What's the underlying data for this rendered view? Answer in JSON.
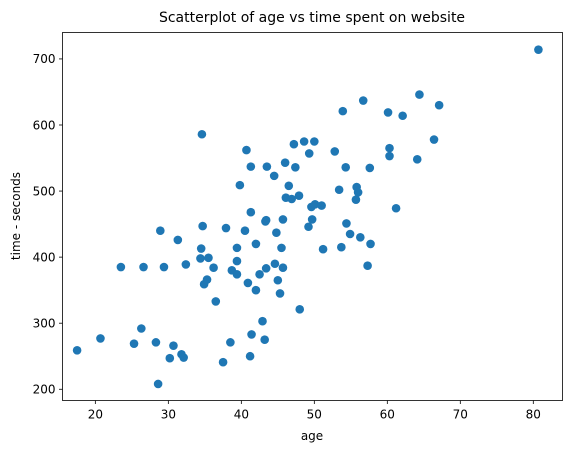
{
  "chart_data": {
    "type": "scatter",
    "title": "Scatterplot of age vs time spent on website",
    "xlabel": "age",
    "ylabel": "time - seconds",
    "xlim": [
      15.5,
      84
    ],
    "ylim": [
      183,
      740
    ],
    "xticks": [
      20,
      30,
      40,
      50,
      60,
      70,
      80
    ],
    "yticks": [
      200,
      300,
      400,
      500,
      600,
      700
    ],
    "grid": false,
    "marker_color": "#1f77b4",
    "points": [
      {
        "x": 17.5,
        "y": 259
      },
      {
        "x": 20.7,
        "y": 277
      },
      {
        "x": 23.5,
        "y": 385
      },
      {
        "x": 25.3,
        "y": 269
      },
      {
        "x": 26.3,
        "y": 292
      },
      {
        "x": 26.6,
        "y": 385
      },
      {
        "x": 28.3,
        "y": 271
      },
      {
        "x": 28.6,
        "y": 208
      },
      {
        "x": 28.9,
        "y": 440
      },
      {
        "x": 29.4,
        "y": 385
      },
      {
        "x": 30.2,
        "y": 247
      },
      {
        "x": 30.7,
        "y": 266
      },
      {
        "x": 31.3,
        "y": 426
      },
      {
        "x": 31.8,
        "y": 253
      },
      {
        "x": 32.1,
        "y": 248
      },
      {
        "x": 32.4,
        "y": 389
      },
      {
        "x": 34.4,
        "y": 398
      },
      {
        "x": 34.5,
        "y": 413
      },
      {
        "x": 34.6,
        "y": 586
      },
      {
        "x": 34.7,
        "y": 447
      },
      {
        "x": 34.9,
        "y": 359
      },
      {
        "x": 35.3,
        "y": 366
      },
      {
        "x": 35.5,
        "y": 399
      },
      {
        "x": 36.2,
        "y": 384
      },
      {
        "x": 36.5,
        "y": 333
      },
      {
        "x": 37.5,
        "y": 241
      },
      {
        "x": 37.9,
        "y": 444
      },
      {
        "x": 38.5,
        "y": 271
      },
      {
        "x": 38.7,
        "y": 380
      },
      {
        "x": 39.4,
        "y": 374
      },
      {
        "x": 39.4,
        "y": 394
      },
      {
        "x": 39.4,
        "y": 414
      },
      {
        "x": 39.8,
        "y": 509
      },
      {
        "x": 40.5,
        "y": 440
      },
      {
        "x": 40.7,
        "y": 562
      },
      {
        "x": 40.9,
        "y": 361
      },
      {
        "x": 41.2,
        "y": 250
      },
      {
        "x": 41.3,
        "y": 468
      },
      {
        "x": 41.3,
        "y": 537
      },
      {
        "x": 41.4,
        "y": 283
      },
      {
        "x": 42.0,
        "y": 350
      },
      {
        "x": 42.0,
        "y": 420
      },
      {
        "x": 42.5,
        "y": 374
      },
      {
        "x": 42.9,
        "y": 303
      },
      {
        "x": 43.2,
        "y": 275
      },
      {
        "x": 43.3,
        "y": 454
      },
      {
        "x": 43.4,
        "y": 383
      },
      {
        "x": 43.4,
        "y": 456
      },
      {
        "x": 43.5,
        "y": 537
      },
      {
        "x": 44.5,
        "y": 523
      },
      {
        "x": 44.6,
        "y": 390
      },
      {
        "x": 44.8,
        "y": 437
      },
      {
        "x": 45.0,
        "y": 365
      },
      {
        "x": 45.3,
        "y": 345
      },
      {
        "x": 45.5,
        "y": 414
      },
      {
        "x": 45.7,
        "y": 457
      },
      {
        "x": 45.7,
        "y": 384
      },
      {
        "x": 46.0,
        "y": 543
      },
      {
        "x": 46.1,
        "y": 490
      },
      {
        "x": 46.5,
        "y": 508
      },
      {
        "x": 46.9,
        "y": 488
      },
      {
        "x": 47.2,
        "y": 571
      },
      {
        "x": 47.4,
        "y": 536
      },
      {
        "x": 47.9,
        "y": 493
      },
      {
        "x": 48.0,
        "y": 321
      },
      {
        "x": 48.6,
        "y": 575
      },
      {
        "x": 49.2,
        "y": 446
      },
      {
        "x": 49.3,
        "y": 557
      },
      {
        "x": 49.6,
        "y": 476
      },
      {
        "x": 49.7,
        "y": 457
      },
      {
        "x": 50.0,
        "y": 575
      },
      {
        "x": 50.1,
        "y": 480
      },
      {
        "x": 51.0,
        "y": 478
      },
      {
        "x": 51.2,
        "y": 412
      },
      {
        "x": 52.8,
        "y": 560
      },
      {
        "x": 53.4,
        "y": 502
      },
      {
        "x": 53.7,
        "y": 415
      },
      {
        "x": 53.9,
        "y": 621
      },
      {
        "x": 54.3,
        "y": 536
      },
      {
        "x": 54.4,
        "y": 451
      },
      {
        "x": 54.9,
        "y": 435
      },
      {
        "x": 55.7,
        "y": 487
      },
      {
        "x": 55.8,
        "y": 506
      },
      {
        "x": 56.0,
        "y": 498
      },
      {
        "x": 56.3,
        "y": 430
      },
      {
        "x": 56.7,
        "y": 637
      },
      {
        "x": 57.3,
        "y": 387
      },
      {
        "x": 57.6,
        "y": 535
      },
      {
        "x": 57.7,
        "y": 420
      },
      {
        "x": 60.1,
        "y": 619
      },
      {
        "x": 60.3,
        "y": 565
      },
      {
        "x": 60.3,
        "y": 553
      },
      {
        "x": 61.2,
        "y": 474
      },
      {
        "x": 62.1,
        "y": 614
      },
      {
        "x": 64.1,
        "y": 548
      },
      {
        "x": 64.4,
        "y": 646
      },
      {
        "x": 66.4,
        "y": 578
      },
      {
        "x": 67.1,
        "y": 630
      },
      {
        "x": 80.7,
        "y": 714
      }
    ]
  }
}
